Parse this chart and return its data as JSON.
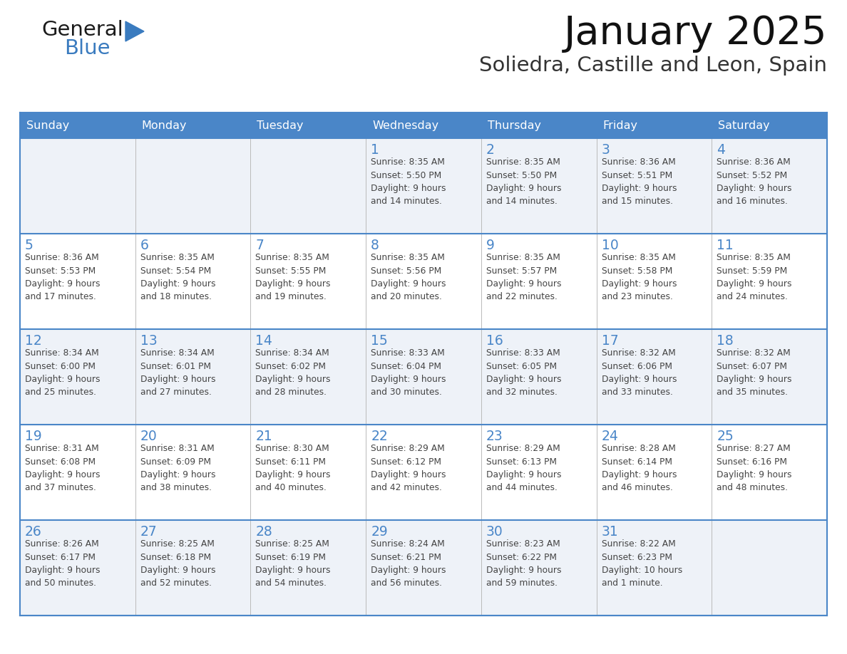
{
  "title": "January 2025",
  "subtitle": "Soliedra, Castille and Leon, Spain",
  "header_bg": "#4a86c8",
  "header_text": "#ffffff",
  "cell_bg_odd": "#eef2f8",
  "cell_bg_even": "#ffffff",
  "border_color": "#4a86c8",
  "day_num_color": "#4a86c8",
  "text_color": "#444444",
  "days_of_week": [
    "Sunday",
    "Monday",
    "Tuesday",
    "Wednesday",
    "Thursday",
    "Friday",
    "Saturday"
  ],
  "weeks": [
    [
      {
        "day": "",
        "info": ""
      },
      {
        "day": "",
        "info": ""
      },
      {
        "day": "",
        "info": ""
      },
      {
        "day": "1",
        "info": "Sunrise: 8:35 AM\nSunset: 5:50 PM\nDaylight: 9 hours\nand 14 minutes."
      },
      {
        "day": "2",
        "info": "Sunrise: 8:35 AM\nSunset: 5:50 PM\nDaylight: 9 hours\nand 14 minutes."
      },
      {
        "day": "3",
        "info": "Sunrise: 8:36 AM\nSunset: 5:51 PM\nDaylight: 9 hours\nand 15 minutes."
      },
      {
        "day": "4",
        "info": "Sunrise: 8:36 AM\nSunset: 5:52 PM\nDaylight: 9 hours\nand 16 minutes."
      }
    ],
    [
      {
        "day": "5",
        "info": "Sunrise: 8:36 AM\nSunset: 5:53 PM\nDaylight: 9 hours\nand 17 minutes."
      },
      {
        "day": "6",
        "info": "Sunrise: 8:35 AM\nSunset: 5:54 PM\nDaylight: 9 hours\nand 18 minutes."
      },
      {
        "day": "7",
        "info": "Sunrise: 8:35 AM\nSunset: 5:55 PM\nDaylight: 9 hours\nand 19 minutes."
      },
      {
        "day": "8",
        "info": "Sunrise: 8:35 AM\nSunset: 5:56 PM\nDaylight: 9 hours\nand 20 minutes."
      },
      {
        "day": "9",
        "info": "Sunrise: 8:35 AM\nSunset: 5:57 PM\nDaylight: 9 hours\nand 22 minutes."
      },
      {
        "day": "10",
        "info": "Sunrise: 8:35 AM\nSunset: 5:58 PM\nDaylight: 9 hours\nand 23 minutes."
      },
      {
        "day": "11",
        "info": "Sunrise: 8:35 AM\nSunset: 5:59 PM\nDaylight: 9 hours\nand 24 minutes."
      }
    ],
    [
      {
        "day": "12",
        "info": "Sunrise: 8:34 AM\nSunset: 6:00 PM\nDaylight: 9 hours\nand 25 minutes."
      },
      {
        "day": "13",
        "info": "Sunrise: 8:34 AM\nSunset: 6:01 PM\nDaylight: 9 hours\nand 27 minutes."
      },
      {
        "day": "14",
        "info": "Sunrise: 8:34 AM\nSunset: 6:02 PM\nDaylight: 9 hours\nand 28 minutes."
      },
      {
        "day": "15",
        "info": "Sunrise: 8:33 AM\nSunset: 6:04 PM\nDaylight: 9 hours\nand 30 minutes."
      },
      {
        "day": "16",
        "info": "Sunrise: 8:33 AM\nSunset: 6:05 PM\nDaylight: 9 hours\nand 32 minutes."
      },
      {
        "day": "17",
        "info": "Sunrise: 8:32 AM\nSunset: 6:06 PM\nDaylight: 9 hours\nand 33 minutes."
      },
      {
        "day": "18",
        "info": "Sunrise: 8:32 AM\nSunset: 6:07 PM\nDaylight: 9 hours\nand 35 minutes."
      }
    ],
    [
      {
        "day": "19",
        "info": "Sunrise: 8:31 AM\nSunset: 6:08 PM\nDaylight: 9 hours\nand 37 minutes."
      },
      {
        "day": "20",
        "info": "Sunrise: 8:31 AM\nSunset: 6:09 PM\nDaylight: 9 hours\nand 38 minutes."
      },
      {
        "day": "21",
        "info": "Sunrise: 8:30 AM\nSunset: 6:11 PM\nDaylight: 9 hours\nand 40 minutes."
      },
      {
        "day": "22",
        "info": "Sunrise: 8:29 AM\nSunset: 6:12 PM\nDaylight: 9 hours\nand 42 minutes."
      },
      {
        "day": "23",
        "info": "Sunrise: 8:29 AM\nSunset: 6:13 PM\nDaylight: 9 hours\nand 44 minutes."
      },
      {
        "day": "24",
        "info": "Sunrise: 8:28 AM\nSunset: 6:14 PM\nDaylight: 9 hours\nand 46 minutes."
      },
      {
        "day": "25",
        "info": "Sunrise: 8:27 AM\nSunset: 6:16 PM\nDaylight: 9 hours\nand 48 minutes."
      }
    ],
    [
      {
        "day": "26",
        "info": "Sunrise: 8:26 AM\nSunset: 6:17 PM\nDaylight: 9 hours\nand 50 minutes."
      },
      {
        "day": "27",
        "info": "Sunrise: 8:25 AM\nSunset: 6:18 PM\nDaylight: 9 hours\nand 52 minutes."
      },
      {
        "day": "28",
        "info": "Sunrise: 8:25 AM\nSunset: 6:19 PM\nDaylight: 9 hours\nand 54 minutes."
      },
      {
        "day": "29",
        "info": "Sunrise: 8:24 AM\nSunset: 6:21 PM\nDaylight: 9 hours\nand 56 minutes."
      },
      {
        "day": "30",
        "info": "Sunrise: 8:23 AM\nSunset: 6:22 PM\nDaylight: 9 hours\nand 59 minutes."
      },
      {
        "day": "31",
        "info": "Sunrise: 8:22 AM\nSunset: 6:23 PM\nDaylight: 10 hours\nand 1 minute."
      },
      {
        "day": "",
        "info": ""
      }
    ]
  ],
  "logo_general_color": "#1a1a1a",
  "logo_blue_color": "#3a7bbf",
  "figsize": [
    11.88,
    9.18
  ],
  "dpi": 100
}
